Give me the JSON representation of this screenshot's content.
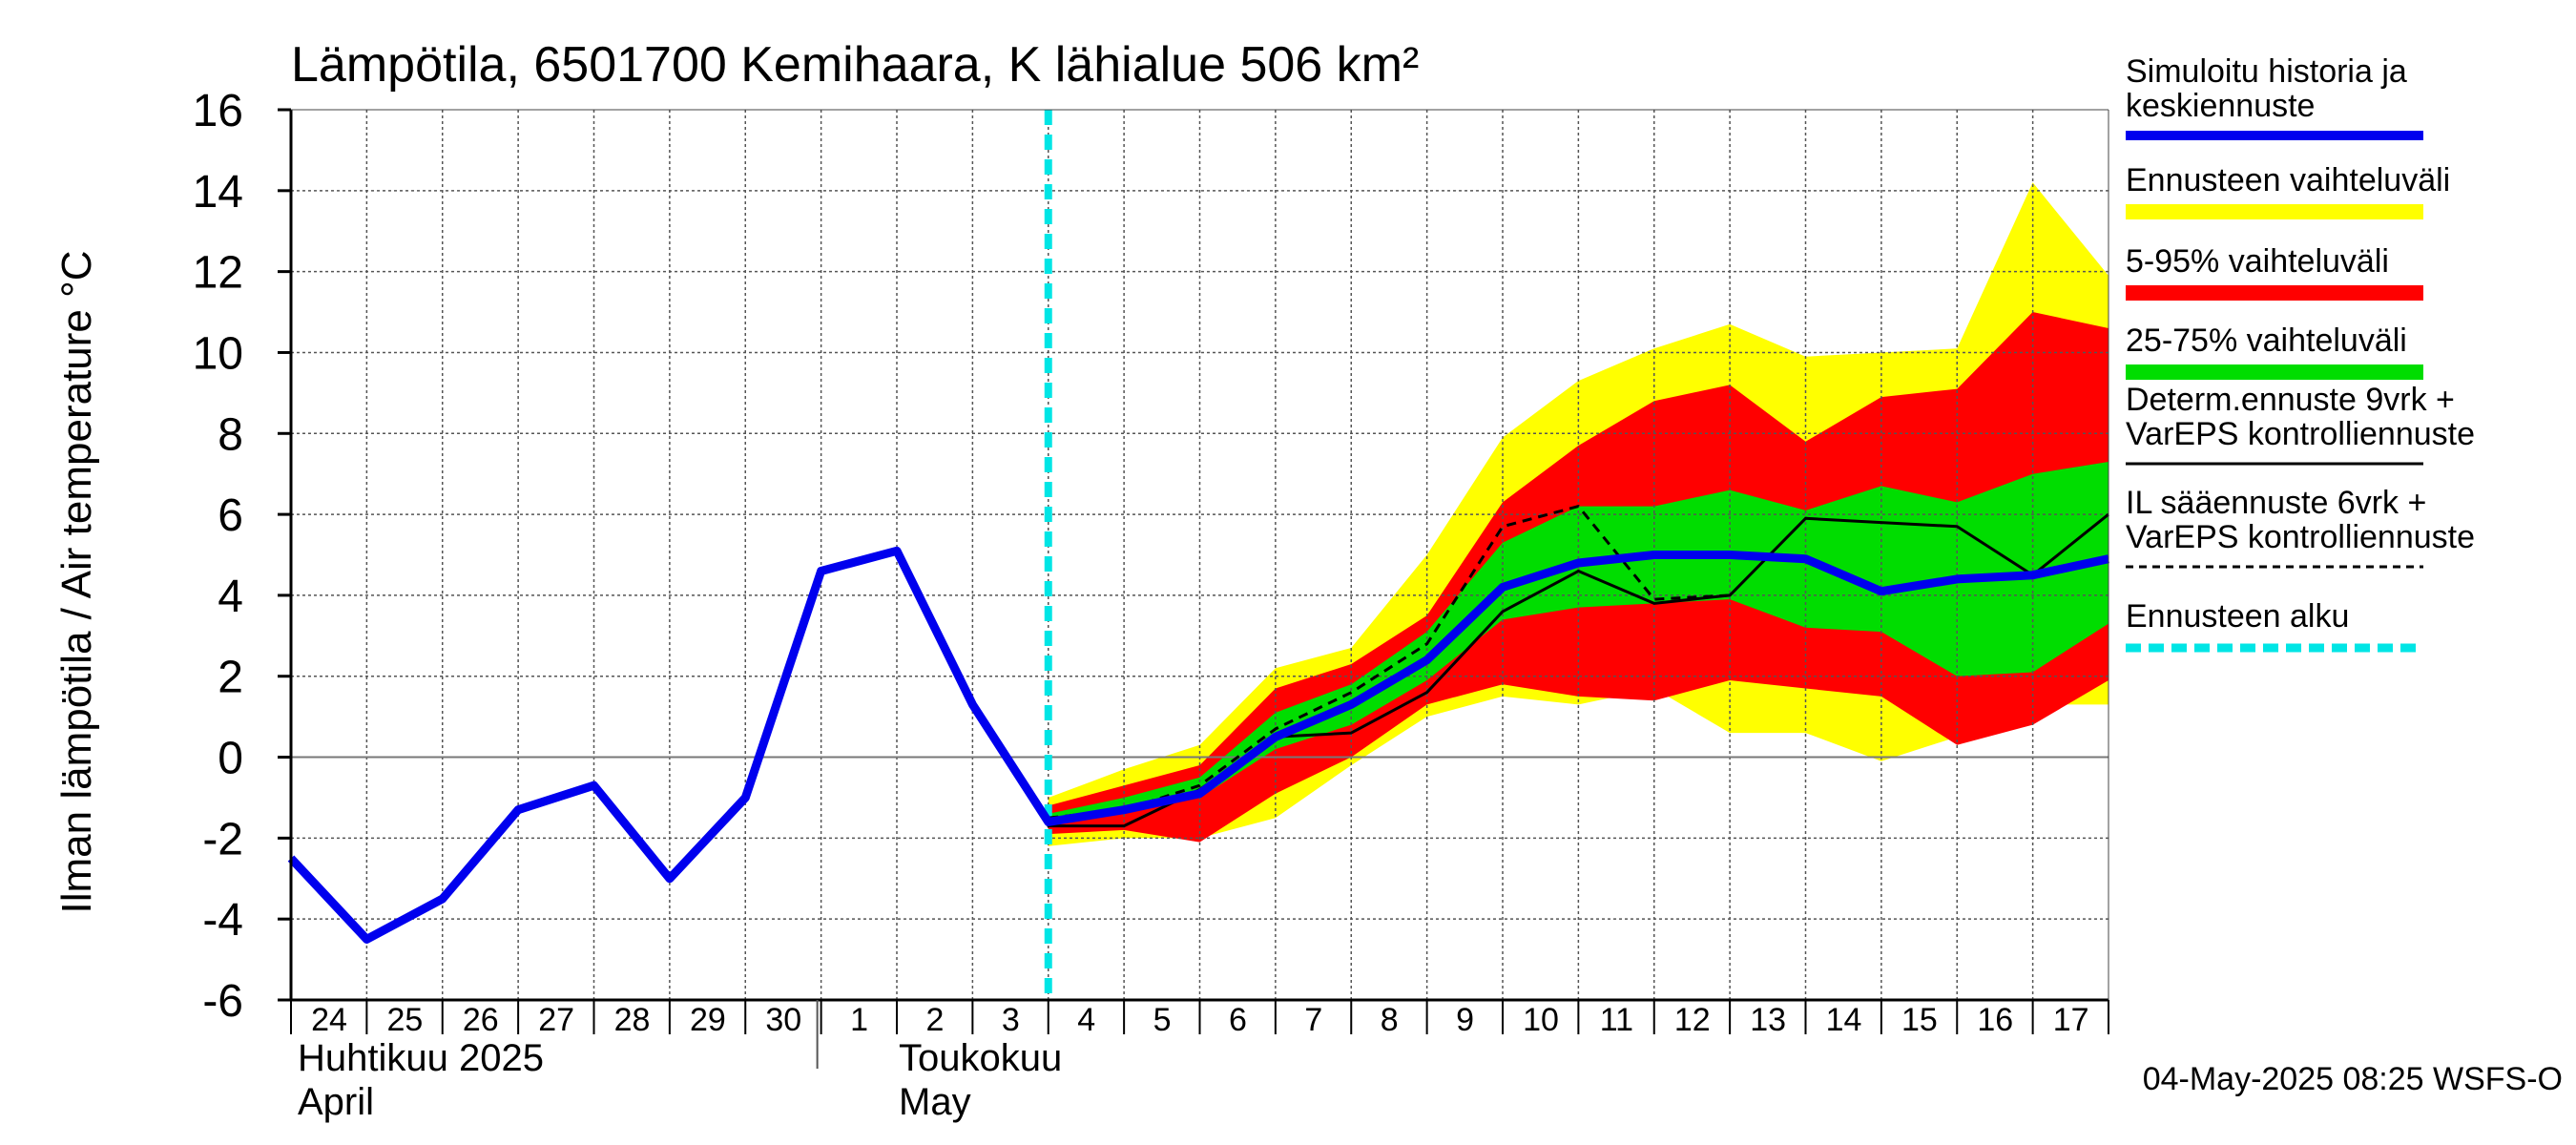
{
  "chart_data": {
    "type": "area",
    "title": "Lämpötila, 6501700 Kemihaara, K lähialue 506 km²",
    "ylabel": "Ilman lämpötila / Air temperature   °C",
    "ylim": [
      -6,
      16
    ],
    "yticks": [
      -6,
      -4,
      -2,
      0,
      2,
      4,
      6,
      8,
      10,
      12,
      14,
      16
    ],
    "x_day_range": [
      0,
      24
    ],
    "x_tick_labels": [
      "24",
      "25",
      "26",
      "27",
      "28",
      "29",
      "30",
      "1",
      "2",
      "3",
      "4",
      "5",
      "6",
      "7",
      "8",
      "9",
      "10",
      "11",
      "12",
      "13",
      "14",
      "15",
      "16",
      "17"
    ],
    "month_labels": [
      {
        "fi": "Huhtikuu  2025",
        "en": "April"
      },
      {
        "fi": "Toukokuu",
        "en": "May"
      }
    ],
    "forecast_start_day": 10.0,
    "bands": {
      "x": [
        10,
        11,
        12,
        13,
        14,
        15,
        16,
        17,
        18,
        19,
        20,
        21,
        22,
        23,
        24
      ],
      "full_range": {
        "lower": [
          -2.2,
          -2.0,
          -2.0,
          -1.5,
          -0.2,
          1.0,
          1.5,
          1.3,
          1.7,
          0.6,
          0.6,
          -0.1,
          0.5,
          1.3,
          1.3
        ],
        "upper": [
          -1.0,
          -0.3,
          0.3,
          2.2,
          2.7,
          5.0,
          7.9,
          9.3,
          10.1,
          10.7,
          9.9,
          10.0,
          10.1,
          14.2,
          11.9
        ]
      },
      "p5_95": {
        "lower": [
          -1.9,
          -1.8,
          -2.1,
          -0.9,
          0.0,
          1.3,
          1.8,
          1.5,
          1.4,
          1.9,
          1.7,
          1.5,
          0.3,
          0.8,
          1.9
        ],
        "upper": [
          -1.2,
          -0.7,
          -0.2,
          1.7,
          2.3,
          3.5,
          6.3,
          7.7,
          8.8,
          9.2,
          7.8,
          8.9,
          9.1,
          11.0,
          10.6
        ]
      },
      "p25_75": {
        "lower": [
          -1.7,
          -1.4,
          -1.0,
          0.2,
          0.8,
          1.9,
          3.4,
          3.7,
          3.8,
          3.9,
          3.2,
          3.1,
          2.0,
          2.1,
          3.3
        ],
        "upper": [
          -1.4,
          -1.0,
          -0.5,
          1.1,
          1.8,
          3.1,
          5.3,
          6.2,
          6.2,
          6.6,
          6.1,
          6.7,
          6.3,
          7.0,
          7.3
        ]
      }
    },
    "series": [
      {
        "name": "Simuloitu historia ja keskiennuste",
        "x": [
          0,
          1,
          2,
          3,
          4,
          5,
          6,
          7,
          8,
          9,
          10,
          11,
          12,
          13,
          14,
          15,
          16,
          17,
          18,
          19,
          20,
          21,
          22,
          23,
          24
        ],
        "values": [
          -2.5,
          -4.5,
          -3.5,
          -1.3,
          -0.7,
          -3.0,
          -1.0,
          4.6,
          5.1,
          1.3,
          -1.6,
          -1.3,
          -0.9,
          0.5,
          1.3,
          2.4,
          4.2,
          4.8,
          5.0,
          5.0,
          4.9,
          4.1,
          4.4,
          4.5,
          4.9
        ]
      },
      {
        "name": "Determ.ennuste 9vrk + VarEPS kontrolliennuste",
        "x": [
          8,
          9,
          10,
          11,
          12,
          13,
          14,
          15,
          16,
          17,
          18,
          19,
          20,
          21,
          22,
          23,
          24
        ],
        "values": [
          5.1,
          1.3,
          -1.7,
          -1.7,
          -0.8,
          0.5,
          0.6,
          1.6,
          3.6,
          4.6,
          3.8,
          4.0,
          5.9,
          5.8,
          5.7,
          4.5,
          6.0
        ]
      },
      {
        "name": "IL sääennuste 6vrk + VarEPS kontrolliennuste",
        "x": [
          8,
          9,
          10,
          11,
          12,
          13,
          14,
          15,
          16,
          17,
          18,
          19
        ],
        "values": [
          5.1,
          1.3,
          -1.5,
          -1.3,
          -0.7,
          0.7,
          1.6,
          2.8,
          5.7,
          6.2,
          3.9,
          4.0
        ]
      }
    ],
    "legend": [
      {
        "label_1": "Simuloitu historia ja",
        "label_2": "keskiennuste",
        "color": "#0000ee",
        "style": "thick"
      },
      {
        "label_1": "Ennusteen vaihteluväli",
        "label_2": "",
        "color": "#ffff00",
        "style": "band"
      },
      {
        "label_1": "5-95% vaihteluväli",
        "label_2": "",
        "color": "#ff0000",
        "style": "band"
      },
      {
        "label_1": "25-75% vaihteluväli",
        "label_2": "",
        "color": "#00dd00",
        "style": "band"
      },
      {
        "label_1": "Determ.ennuste 9vrk +",
        "label_2": "VarEPS kontrolliennuste",
        "color": "#000000",
        "style": "solid"
      },
      {
        "label_1": "IL sääennuste 6vrk  +",
        "label_2": "  VarEPS kontrolliennuste",
        "color": "#000000",
        "style": "dashed"
      },
      {
        "label_1": "Ennusteen alku",
        "label_2": "",
        "color": "#00e5e5",
        "style": "cyan-dashed"
      }
    ],
    "footer": "04-May-2025 08:25 WSFS-O"
  }
}
